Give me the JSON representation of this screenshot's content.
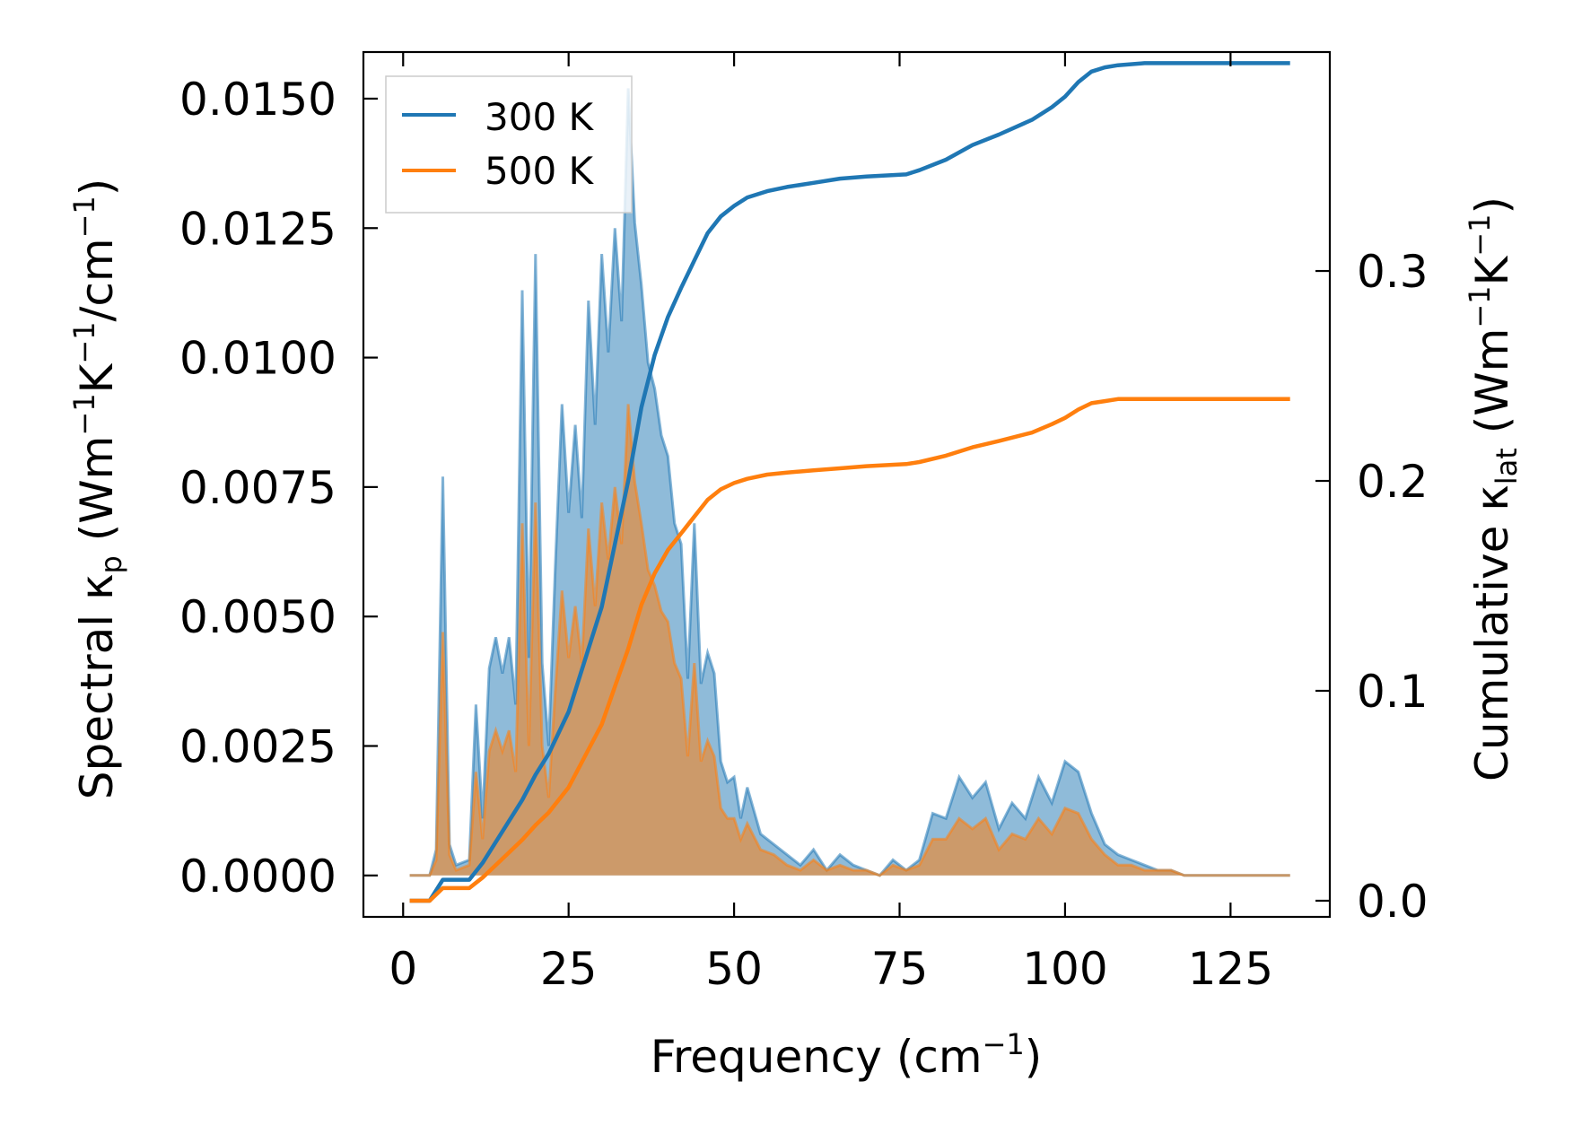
{
  "chart_data": {
    "type": "area+line",
    "xlabel": "Frequency (cm⁻¹)",
    "ylabel_left": "Spectral κₚ (Wm⁻¹K⁻¹/cm⁻¹)",
    "ylabel_right": "Cumulative κₗₐₜ (Wm⁻¹K⁻¹)",
    "xlim": [
      -6,
      140
    ],
    "ylim_left": [
      -0.0008,
      0.0159
    ],
    "ylim_right": [
      -0.0077,
      0.4043
    ],
    "xticks": [
      0,
      25,
      50,
      75,
      100,
      125
    ],
    "xtick_labels": [
      "0",
      "25",
      "50",
      "75",
      "100",
      "125"
    ],
    "yticks_left": [
      0.0,
      0.0025,
      0.005,
      0.0075,
      0.01,
      0.0125,
      0.015
    ],
    "ytick_labels_left": [
      "0.0000",
      "0.0025",
      "0.0050",
      "0.0075",
      "0.0100",
      "0.0125",
      "0.0150"
    ],
    "yticks_right": [
      0.0,
      0.1,
      0.2,
      0.3
    ],
    "ytick_labels_right": [
      "0.0",
      "0.1",
      "0.2",
      "0.3"
    ],
    "legend": {
      "position": "upper-left",
      "entries": [
        "300 K",
        "500 K"
      ]
    },
    "series": [
      {
        "name": "300 K",
        "color": "#1f77b4",
        "spectral": {
          "x": [
            1,
            4,
            5,
            6,
            7,
            8,
            10,
            11,
            12,
            13,
            14,
            15,
            16,
            17,
            18,
            19,
            20,
            21,
            22,
            23,
            24,
            25,
            26,
            27,
            28,
            29,
            30,
            31,
            32,
            33,
            34,
            35,
            36,
            37,
            38,
            39,
            40,
            41,
            42,
            43,
            44,
            45,
            46,
            47,
            48,
            49,
            50,
            51,
            52,
            54,
            56,
            58,
            60,
            62,
            64,
            66,
            68,
            70,
            72,
            74,
            76,
            78,
            80,
            82,
            84,
            86,
            88,
            90,
            92,
            94,
            96,
            98,
            100,
            102,
            104,
            106,
            108,
            110,
            112,
            114,
            116,
            118,
            120,
            125,
            134
          ],
          "y": [
            0,
            0,
            0.0005,
            0.0077,
            0.0006,
            0.0002,
            0.0003,
            0.0033,
            0.0011,
            0.004,
            0.0046,
            0.0039,
            0.0046,
            0.0033,
            0.0113,
            0.0042,
            0.012,
            0.0041,
            0.0025,
            0.006,
            0.0091,
            0.007,
            0.0087,
            0.0069,
            0.0111,
            0.0087,
            0.012,
            0.0101,
            0.0125,
            0.0107,
            0.0152,
            0.0126,
            0.0114,
            0.0099,
            0.0094,
            0.0085,
            0.0081,
            0.0068,
            0.0064,
            0.0038,
            0.0068,
            0.0037,
            0.0043,
            0.0039,
            0.0022,
            0.0018,
            0.0019,
            0.0011,
            0.0017,
            0.0008,
            0.0006,
            0.0004,
            0.0002,
            0.0005,
            0.0001,
            0.0004,
            0.0002,
            0.0001,
            0.0,
            0.0003,
            0.0001,
            0.0003,
            0.0012,
            0.0011,
            0.0019,
            0.0015,
            0.0018,
            0.0009,
            0.0014,
            0.0011,
            0.0019,
            0.0014,
            0.0022,
            0.002,
            0.0012,
            0.0006,
            0.0004,
            0.0003,
            0.0002,
            0.0001,
            0.0001,
            0.0,
            0.0,
            0.0,
            0.0
          ]
        },
        "cumulative": {
          "x": [
            1,
            4,
            6,
            10,
            12,
            15,
            18,
            20,
            22,
            25,
            28,
            30,
            32,
            34,
            36,
            38,
            40,
            42,
            44,
            46,
            48,
            50,
            52,
            55,
            58,
            62,
            66,
            70,
            76,
            78,
            82,
            86,
            90,
            95,
            98,
            100,
            102,
            104,
            106,
            108,
            112,
            120,
            134
          ],
          "y": [
            0,
            0,
            0.01,
            0.01,
            0.018,
            0.033,
            0.048,
            0.06,
            0.07,
            0.09,
            0.12,
            0.14,
            0.17,
            0.2,
            0.235,
            0.26,
            0.278,
            0.292,
            0.305,
            0.318,
            0.326,
            0.331,
            0.335,
            0.338,
            0.34,
            0.342,
            0.344,
            0.345,
            0.346,
            0.348,
            0.353,
            0.36,
            0.365,
            0.372,
            0.378,
            0.383,
            0.39,
            0.395,
            0.397,
            0.398,
            0.399,
            0.399,
            0.399
          ]
        }
      },
      {
        "name": "500 K",
        "color": "#ff7f0e",
        "spectral": {
          "x": [
            1,
            4,
            5,
            6,
            7,
            8,
            10,
            11,
            12,
            13,
            14,
            15,
            16,
            17,
            18,
            19,
            20,
            21,
            22,
            23,
            24,
            25,
            26,
            27,
            28,
            29,
            30,
            31,
            32,
            33,
            34,
            35,
            36,
            37,
            38,
            39,
            40,
            41,
            42,
            43,
            44,
            45,
            46,
            47,
            48,
            49,
            50,
            51,
            52,
            54,
            56,
            58,
            60,
            62,
            64,
            66,
            68,
            70,
            72,
            74,
            76,
            78,
            80,
            82,
            84,
            86,
            88,
            90,
            92,
            94,
            96,
            98,
            100,
            102,
            104,
            106,
            108,
            110,
            112,
            114,
            116,
            118,
            120,
            125,
            134
          ],
          "y": [
            0,
            0,
            0.0003,
            0.0047,
            0.0004,
            0.0001,
            0.0002,
            0.002,
            0.0007,
            0.0024,
            0.0028,
            0.0024,
            0.0028,
            0.002,
            0.0068,
            0.0025,
            0.0072,
            0.0025,
            0.0015,
            0.0036,
            0.0055,
            0.0042,
            0.0052,
            0.0041,
            0.0067,
            0.0052,
            0.0072,
            0.0061,
            0.0075,
            0.0064,
            0.0091,
            0.0076,
            0.0068,
            0.0059,
            0.0056,
            0.0051,
            0.0049,
            0.0041,
            0.0038,
            0.0023,
            0.0041,
            0.0022,
            0.0026,
            0.0023,
            0.0013,
            0.0011,
            0.0011,
            0.0007,
            0.001,
            0.0005,
            0.0004,
            0.0002,
            0.0001,
            0.0003,
            0.0001,
            0.0002,
            0.0001,
            0.0001,
            0.0,
            0.0002,
            0.0001,
            0.0002,
            0.0007,
            0.0007,
            0.0011,
            0.0009,
            0.0011,
            0.0005,
            0.0008,
            0.0007,
            0.0011,
            0.0008,
            0.0013,
            0.0012,
            0.0007,
            0.0004,
            0.0002,
            0.0002,
            0.0001,
            0.0001,
            0.0001,
            0.0,
            0.0,
            0.0,
            0.0
          ]
        },
        "cumulative": {
          "x": [
            1,
            4,
            6,
            10,
            12,
            15,
            18,
            20,
            22,
            25,
            28,
            30,
            32,
            34,
            36,
            38,
            40,
            42,
            44,
            46,
            48,
            50,
            52,
            55,
            58,
            62,
            66,
            70,
            76,
            78,
            82,
            86,
            90,
            95,
            98,
            100,
            102,
            104,
            106,
            108,
            112,
            120,
            134
          ],
          "y": [
            0,
            0,
            0.006,
            0.006,
            0.011,
            0.02,
            0.029,
            0.036,
            0.042,
            0.054,
            0.072,
            0.084,
            0.102,
            0.12,
            0.141,
            0.156,
            0.167,
            0.175,
            0.183,
            0.191,
            0.196,
            0.199,
            0.201,
            0.203,
            0.204,
            0.205,
            0.206,
            0.207,
            0.208,
            0.209,
            0.212,
            0.216,
            0.219,
            0.223,
            0.227,
            0.23,
            0.234,
            0.237,
            0.238,
            0.239,
            0.239,
            0.239,
            0.239
          ]
        }
      }
    ]
  }
}
